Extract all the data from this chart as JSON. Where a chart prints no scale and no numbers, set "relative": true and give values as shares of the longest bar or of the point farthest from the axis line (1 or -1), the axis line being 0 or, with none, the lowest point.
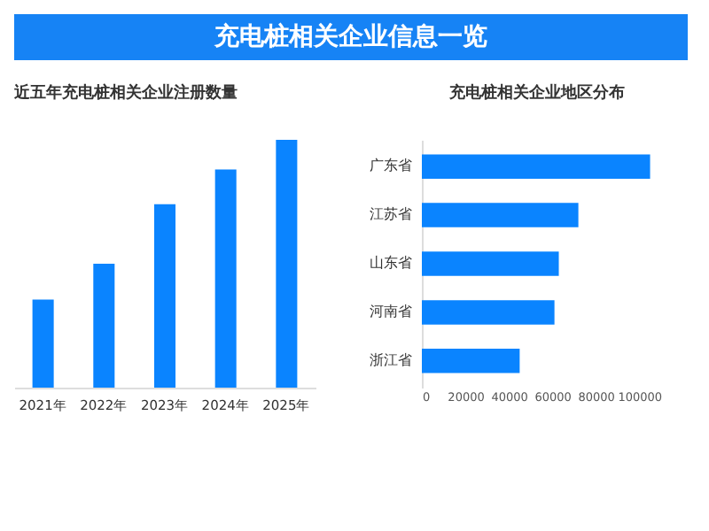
{
  "chart_data": [
    {
      "type": "other",
      "title": "充电桩相关企业信息一览"
    },
    {
      "type": "bar",
      "title": "近五年充电桩相关企业注册数量",
      "categories": [
        "2021年",
        "2022年",
        "2023年",
        "2024年",
        "2025年"
      ],
      "values": [
        0.355,
        0.5,
        0.74,
        0.88,
        1
      ],
      "relative": true,
      "color": "#0a84ff",
      "grid": false
    },
    {
      "type": "bar",
      "title": "充电桩相关企业地区分布",
      "orientation": "horizontal",
      "categories": [
        "广东省",
        "江苏省",
        "山东省",
        "河南省",
        "浙江省"
      ],
      "values": [
        105000,
        72000,
        63000,
        61000,
        45000
      ],
      "color": "#0a84ff",
      "xlim": [
        0,
        106000
      ],
      "xticks": [
        0,
        20000,
        40000,
        60000,
        80000,
        100000
      ],
      "grid": false
    }
  ]
}
